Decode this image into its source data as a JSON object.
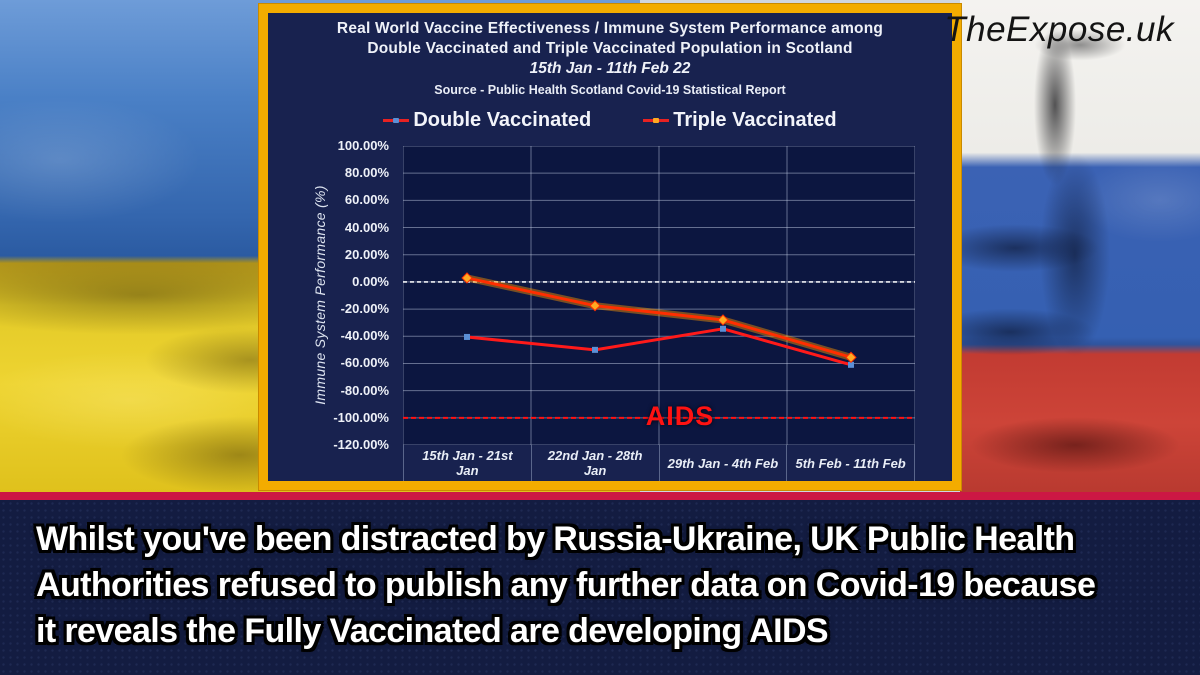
{
  "brand": "TheExpose.uk",
  "caption": {
    "lines": [
      "Whilst you've been distracted by Russia-Ukraine, UK Public Health",
      "Authorities refused to publish any further data on Covid-19 because",
      "it reveals the Fully Vaccinated are developing AIDS"
    ]
  },
  "colors": {
    "gold_border": "#f3ac00",
    "panel_navy": "#18224f",
    "plot_navy": "#0c1640",
    "caption_navy": "#131c41",
    "stripe_crimson": "#cc1744",
    "aids_red": "#ff1212",
    "zero_line_white": "#ffffff",
    "ukraine_blue": "#3d72ba",
    "ukraine_yellow": "#e7ce2b",
    "russia_white": "#f3f2ef",
    "russia_blue": "#3b62b4",
    "russia_red": "#c63d35"
  },
  "chart_data": {
    "type": "line",
    "title_lines": [
      "Real World Vaccine Effectiveness / Immune System Performance among",
      "Double Vaccinated and Triple Vaccinated Population in Scotland"
    ],
    "date_range": "15th Jan - 11th Feb 22",
    "source": "Source - Public Health Scotland Covid-19 Statistical Report",
    "ylabel": "Immune System Performance (%)",
    "ylim": [
      -120,
      100
    ],
    "ytick_labels": [
      "100.00%",
      "80.00%",
      "60.00%",
      "40.00%",
      "20.00%",
      "0.00%",
      "-20.00%",
      "-40.00%",
      "-60.00%",
      "-80.00%",
      "-100.00%",
      "-120.00%"
    ],
    "categories": [
      "15th Jan - 21st Jan",
      "22nd Jan - 28th Jan",
      "29th Jan - 4th Feb",
      "5th Feb - 11th Feb"
    ],
    "series": [
      {
        "name": "Double Vaccinated",
        "values": [
          -40.5,
          -50.0,
          -34.5,
          -61.0
        ],
        "line_color": "#ff1a1a",
        "marker": "square",
        "marker_color": "#5b8fd6"
      },
      {
        "name": "Triple Vaccinated",
        "values": [
          2.9,
          -17.5,
          -28.0,
          -55.5
        ],
        "line_color": "#ff2e00",
        "marker": "diamond",
        "marker_color": "#ffaa22",
        "glow_color": "#ff9500"
      }
    ],
    "annotations": {
      "zero_line": 0,
      "aids_line": -100,
      "aids_label": "AIDS"
    },
    "grid": true,
    "legend_position": "top"
  }
}
